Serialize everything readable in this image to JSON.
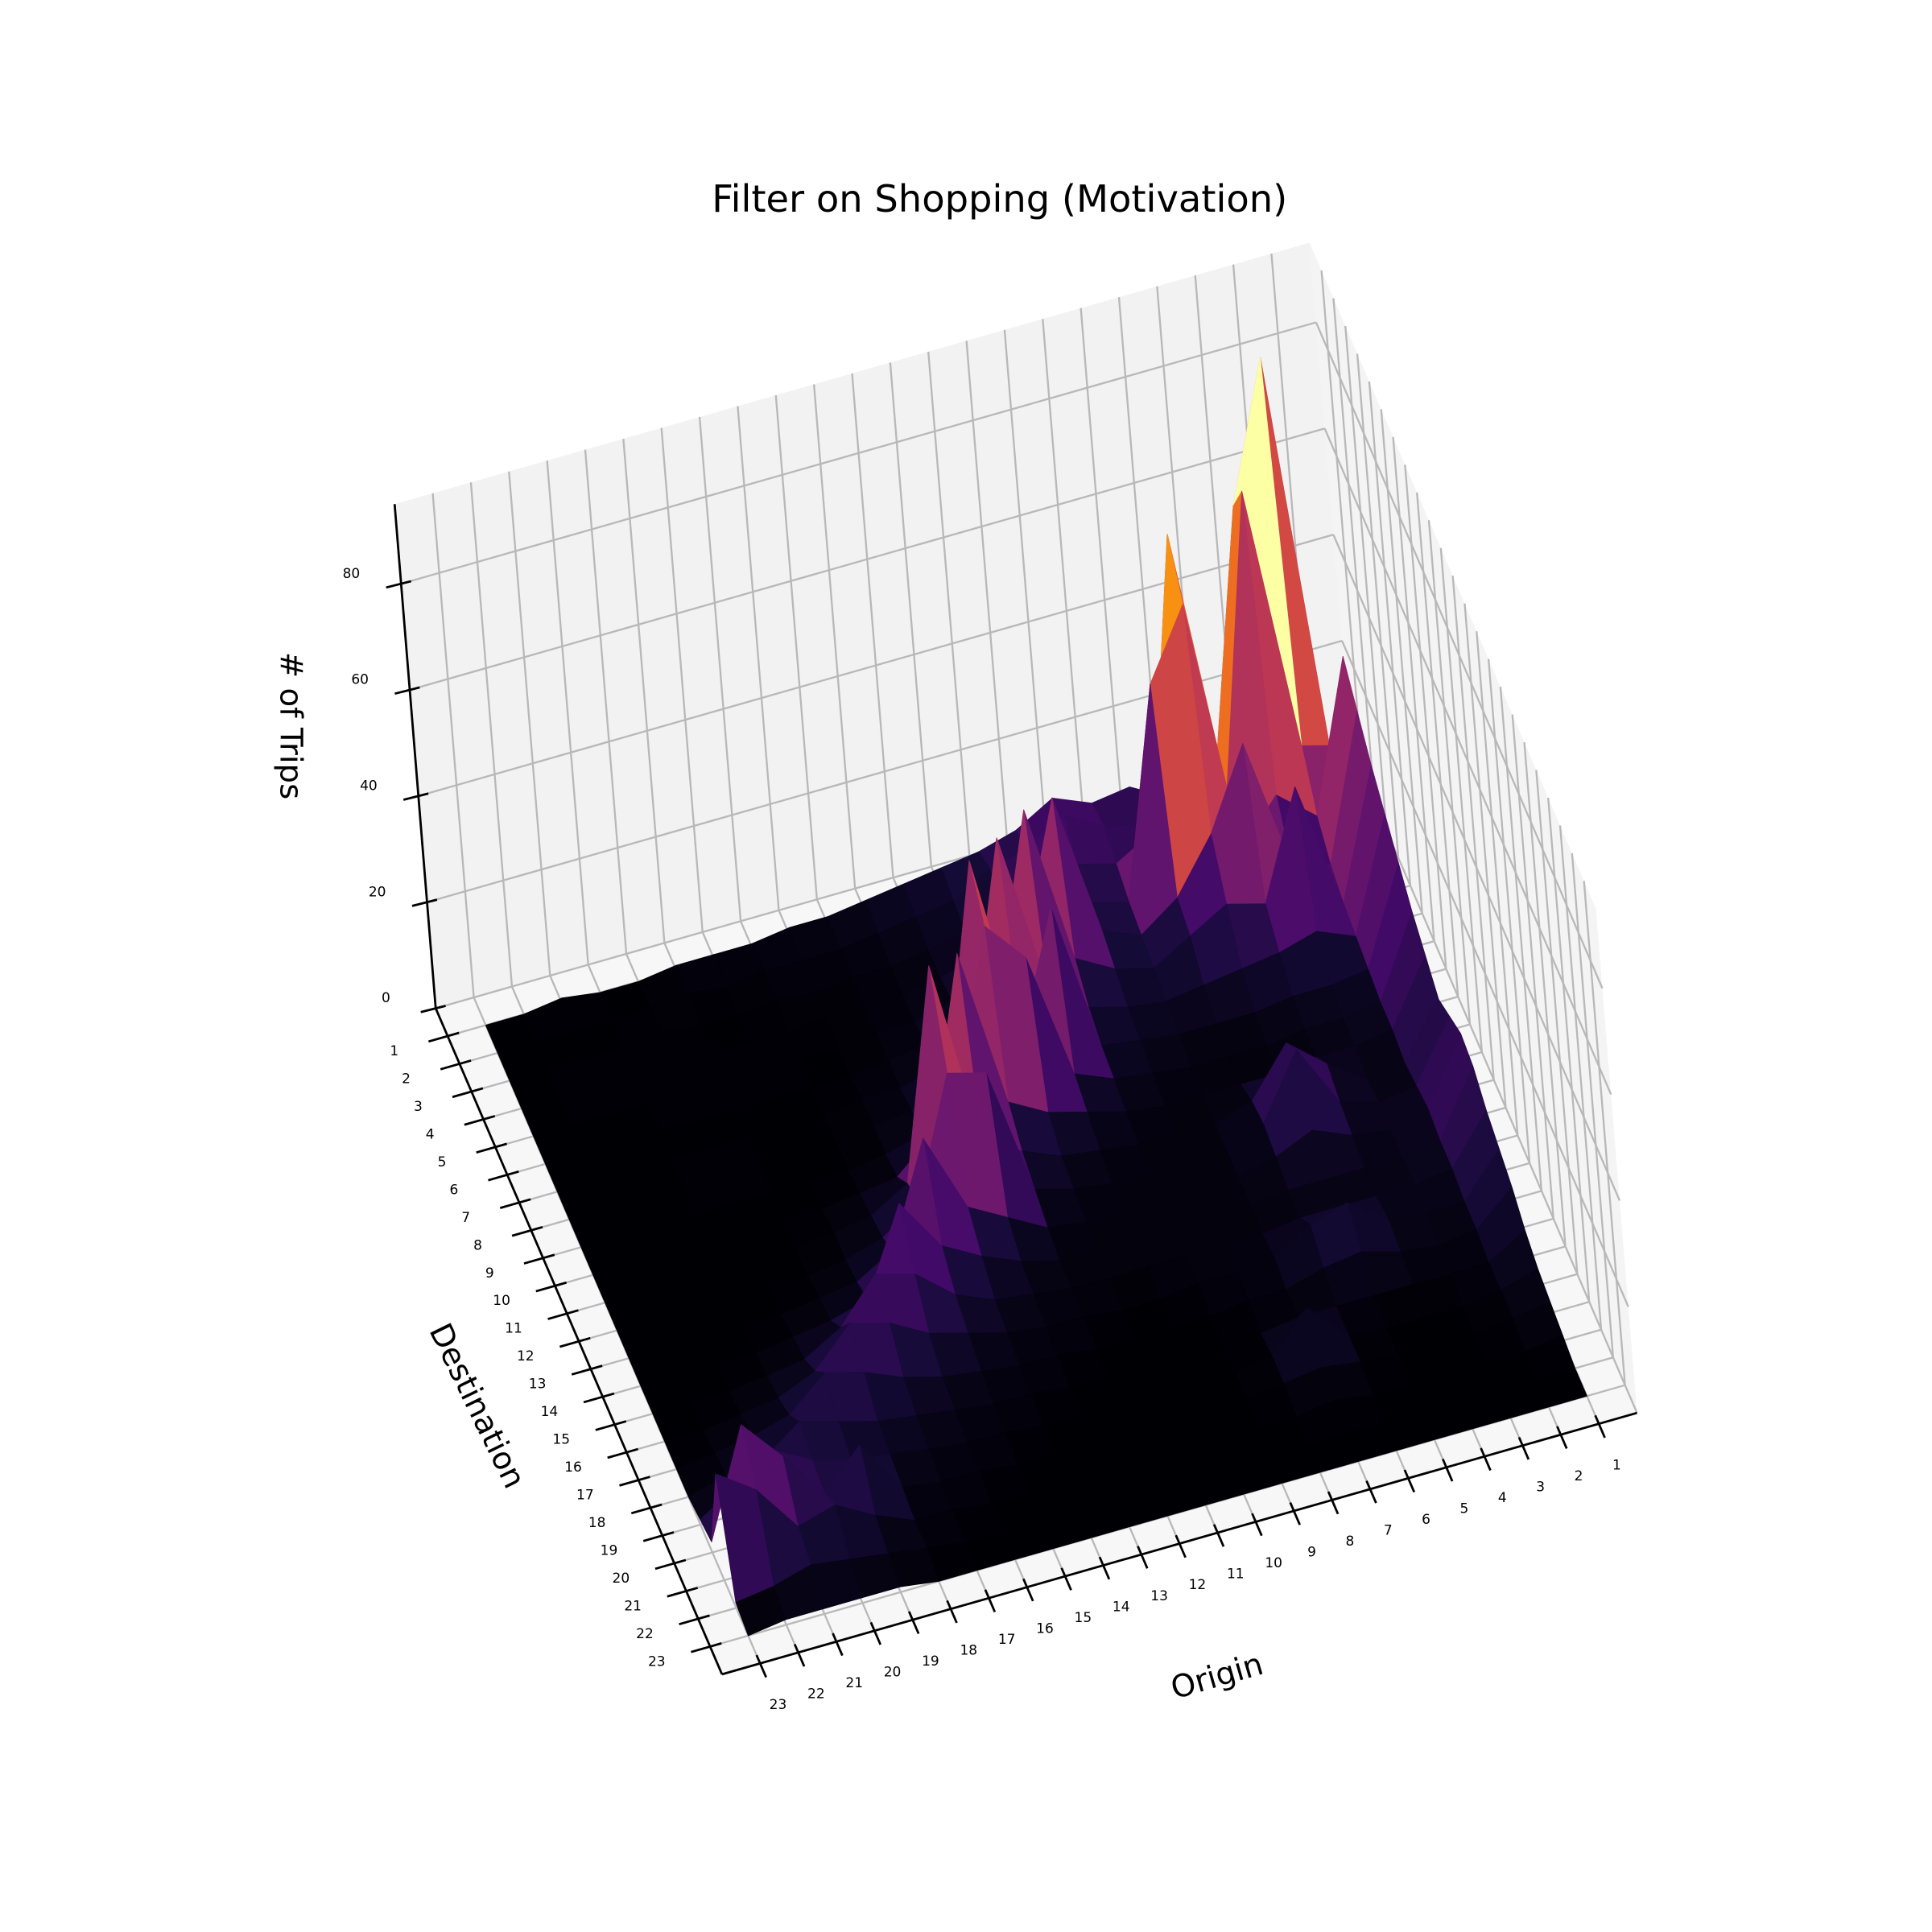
{
  "chart_data": {
    "type": "surface",
    "title": "Filter on Shopping (Motivation)",
    "xlabel": "Origin",
    "ylabel": "Destination",
    "zlabel": "# of Trips",
    "colormap": "inferno",
    "grid": true,
    "x": [
      1,
      2,
      3,
      4,
      5,
      6,
      7,
      8,
      9,
      10,
      11,
      12,
      13,
      14,
      15,
      16,
      17,
      18,
      19,
      20,
      21,
      22,
      23
    ],
    "y": [
      1,
      2,
      3,
      4,
      5,
      6,
      7,
      8,
      9,
      10,
      11,
      12,
      13,
      14,
      15,
      16,
      17,
      18,
      19,
      20,
      21,
      22,
      23
    ],
    "z": [
      [
        4,
        6,
        5,
        8,
        6,
        10,
        9,
        12,
        8,
        6,
        5,
        4,
        3,
        2,
        2,
        1,
        1,
        1,
        0,
        0,
        1,
        0,
        0
      ],
      [
        10,
        88,
        62,
        14,
        12,
        8,
        10,
        14,
        10,
        8,
        4,
        3,
        2,
        1,
        1,
        1,
        0,
        1,
        0,
        0,
        0,
        0,
        0
      ],
      [
        18,
        20,
        70,
        16,
        66,
        12,
        8,
        10,
        12,
        6,
        3,
        2,
        1,
        1,
        0,
        1,
        0,
        0,
        1,
        0,
        0,
        0,
        0
      ],
      [
        40,
        12,
        18,
        10,
        58,
        45,
        6,
        8,
        14,
        10,
        4,
        2,
        1,
        0,
        1,
        0,
        0,
        0,
        0,
        0,
        1,
        0,
        0
      ],
      [
        35,
        8,
        10,
        35,
        20,
        10,
        5,
        8,
        35,
        10,
        6,
        3,
        1,
        1,
        0,
        0,
        1,
        0,
        1,
        0,
        0,
        0,
        0
      ],
      [
        30,
        6,
        30,
        10,
        12,
        8,
        4,
        6,
        10,
        40,
        8,
        4,
        2,
        1,
        0,
        0,
        0,
        0,
        0,
        0,
        0,
        0,
        0
      ],
      [
        26,
        5,
        8,
        6,
        5,
        4,
        3,
        4,
        6,
        12,
        42,
        8,
        3,
        1,
        1,
        0,
        0,
        0,
        0,
        0,
        0,
        0,
        0
      ],
      [
        22,
        4,
        3,
        3,
        2,
        2,
        2,
        3,
        4,
        32,
        10,
        45,
        6,
        2,
        1,
        0,
        0,
        0,
        1,
        0,
        0,
        0,
        0
      ],
      [
        18,
        3,
        2,
        2,
        1,
        1,
        1,
        2,
        3,
        6,
        30,
        38,
        8,
        3,
        1,
        0,
        0,
        0,
        0,
        0,
        0,
        0,
        0
      ],
      [
        15,
        3,
        2,
        2,
        1,
        1,
        1,
        1,
        2,
        4,
        6,
        10,
        40,
        8,
        2,
        1,
        0,
        0,
        0,
        0,
        0,
        0,
        0
      ],
      [
        12,
        2,
        1,
        6,
        12,
        3,
        1,
        1,
        1,
        2,
        3,
        6,
        10,
        45,
        6,
        2,
        1,
        0,
        0,
        0,
        0,
        0,
        0
      ],
      [
        14,
        3,
        2,
        4,
        16,
        4,
        1,
        1,
        1,
        1,
        2,
        4,
        28,
        30,
        8,
        3,
        1,
        0,
        0,
        0,
        0,
        0,
        0
      ],
      [
        16,
        4,
        2,
        3,
        6,
        3,
        1,
        1,
        1,
        1,
        1,
        2,
        6,
        10,
        25,
        6,
        2,
        1,
        0,
        0,
        0,
        0,
        0
      ],
      [
        15,
        3,
        2,
        2,
        2,
        2,
        1,
        1,
        1,
        1,
        1,
        1,
        3,
        6,
        10,
        20,
        4,
        2,
        1,
        0,
        0,
        0,
        0
      ],
      [
        12,
        3,
        2,
        2,
        2,
        2,
        1,
        1,
        1,
        1,
        1,
        1,
        2,
        3,
        6,
        12,
        14,
        6,
        2,
        1,
        0,
        0,
        0
      ],
      [
        10,
        2,
        2,
        3,
        8,
        6,
        2,
        1,
        1,
        0,
        0,
        1,
        1,
        2,
        4,
        6,
        10,
        12,
        5,
        2,
        1,
        0,
        0
      ],
      [
        8,
        2,
        1,
        2,
        4,
        3,
        1,
        1,
        0,
        0,
        0,
        0,
        1,
        1,
        2,
        3,
        5,
        8,
        10,
        4,
        2,
        1,
        0
      ],
      [
        5,
        1,
        1,
        1,
        1,
        1,
        1,
        0,
        0,
        0,
        0,
        0,
        0,
        1,
        1,
        2,
        3,
        4,
        6,
        8,
        3,
        2,
        0
      ],
      [
        3,
        1,
        0,
        0,
        0,
        1,
        8,
        1,
        0,
        0,
        0,
        0,
        0,
        0,
        1,
        1,
        2,
        3,
        4,
        6,
        10,
        5,
        1
      ],
      [
        2,
        1,
        0,
        0,
        0,
        1,
        2,
        1,
        0,
        0,
        0,
        0,
        0,
        0,
        0,
        1,
        1,
        2,
        12,
        5,
        14,
        22,
        2
      ],
      [
        1,
        0,
        0,
        0,
        0,
        0,
        1,
        0,
        0,
        0,
        0,
        0,
        0,
        0,
        0,
        0,
        1,
        1,
        4,
        8,
        6,
        15,
        20
      ],
      [
        0,
        0,
        0,
        0,
        0,
        0,
        0,
        0,
        0,
        0,
        0,
        0,
        0,
        0,
        0,
        0,
        0,
        1,
        2,
        3,
        4,
        2,
        1
      ],
      [
        0,
        0,
        0,
        0,
        0,
        0,
        0,
        0,
        0,
        0,
        0,
        0,
        0,
        0,
        0,
        0,
        0,
        0,
        1,
        1,
        1,
        1,
        0
      ]
    ],
    "xlim": [
      0,
      24
    ],
    "ylim": [
      0,
      24
    ],
    "zlim": [
      0,
      95
    ],
    "xticks": [
      1,
      2,
      3,
      4,
      5,
      6,
      7,
      8,
      9,
      10,
      11,
      12,
      13,
      14,
      15,
      16,
      17,
      18,
      19,
      20,
      21,
      22,
      23
    ],
    "yticks": [
      1,
      2,
      3,
      4,
      5,
      6,
      7,
      8,
      9,
      10,
      11,
      12,
      13,
      14,
      15,
      16,
      17,
      18,
      19,
      20,
      21,
      22,
      23
    ],
    "zticks": [
      0,
      20,
      40,
      60,
      80
    ]
  }
}
